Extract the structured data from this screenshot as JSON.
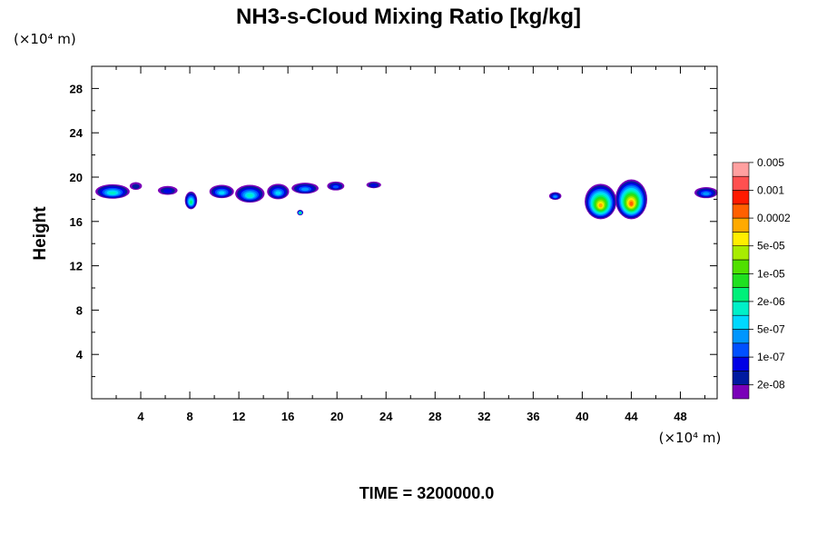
{
  "chart_data": {
    "type": "heatmap",
    "title": "NH3-s-Cloud Mixing Ratio [kg/kg]",
    "x_unit": "(×10⁴ m)",
    "y_unit": "(×10⁴ m)",
    "ylabel": "Height",
    "xlim": [
      0,
      51
    ],
    "ylim": [
      0,
      30
    ],
    "x_ticks": [
      4,
      8,
      12,
      16,
      20,
      24,
      28,
      32,
      36,
      40,
      44,
      48
    ],
    "y_ticks": [
      4,
      8,
      12,
      16,
      20,
      24,
      28
    ],
    "grid": false,
    "legend": {
      "placement": "right",
      "colors": [
        "#7a00b8",
        "#001aa0",
        "#0000e6",
        "#0050ff",
        "#0096ff",
        "#00d8ff",
        "#00f0c8",
        "#00f07a",
        "#20e020",
        "#50e000",
        "#a8ec00",
        "#ffee00",
        "#ffaa00",
        "#ff6000",
        "#ff1a00",
        "#ff5050",
        "#ffa0a0"
      ],
      "labels": [
        "2e-08",
        "1e-07",
        "5e-07",
        "2e-06",
        "1e-05",
        "5e-05",
        "0.0002",
        "0.001",
        "0.005"
      ]
    },
    "cloud_blobs": [
      {
        "x": 1.7,
        "y": 18.7,
        "w": 2.8,
        "h": 1.3,
        "peak": 6
      },
      {
        "x": 3.6,
        "y": 19.2,
        "w": 1.0,
        "h": 0.7,
        "peak": 1
      },
      {
        "x": 6.2,
        "y": 18.8,
        "w": 1.6,
        "h": 0.8,
        "peak": 2
      },
      {
        "x": 8.1,
        "y": 17.9,
        "w": 1.0,
        "h": 1.6,
        "peak": 7
      },
      {
        "x": 10.6,
        "y": 18.7,
        "w": 2.0,
        "h": 1.2,
        "peak": 5
      },
      {
        "x": 12.9,
        "y": 18.5,
        "w": 2.4,
        "h": 1.6,
        "peak": 6
      },
      {
        "x": 15.2,
        "y": 18.7,
        "w": 1.8,
        "h": 1.4,
        "peak": 5
      },
      {
        "x": 17.4,
        "y": 19.0,
        "w": 2.2,
        "h": 1.0,
        "peak": 4
      },
      {
        "x": 19.9,
        "y": 19.2,
        "w": 1.4,
        "h": 0.8,
        "peak": 3
      },
      {
        "x": 17.0,
        "y": 16.8,
        "w": 0.5,
        "h": 0.5,
        "peak": 8
      },
      {
        "x": 23.0,
        "y": 19.3,
        "w": 1.2,
        "h": 0.6,
        "peak": 2
      },
      {
        "x": 37.8,
        "y": 18.3,
        "w": 1.0,
        "h": 0.7,
        "peak": 4
      },
      {
        "x": 41.5,
        "y": 17.8,
        "w": 2.6,
        "h": 3.2,
        "peak": 12
      },
      {
        "x": 44.0,
        "y": 18.0,
        "w": 2.6,
        "h": 3.6,
        "peak": 13
      },
      {
        "x": 50.1,
        "y": 18.6,
        "w": 1.9,
        "h": 1.0,
        "peak": 4
      }
    ]
  },
  "footer": {
    "time_label": "TIME = 3200000.0"
  }
}
